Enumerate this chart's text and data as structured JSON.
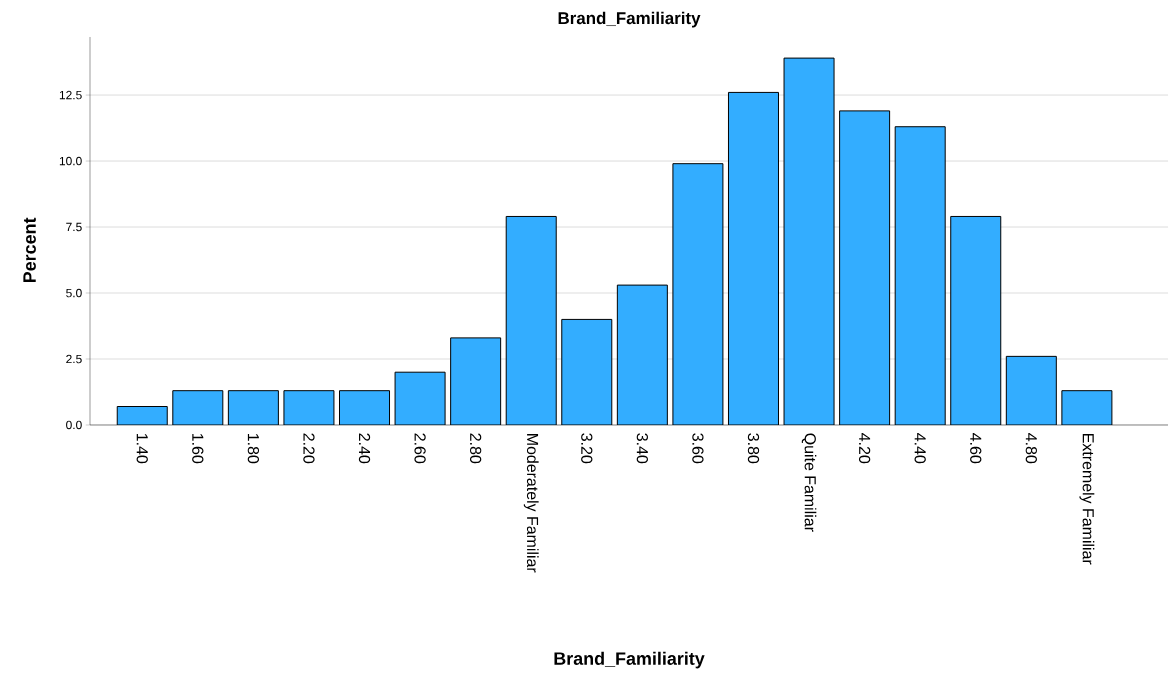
{
  "chart_data": {
    "type": "bar",
    "title": "Brand_Familiarity",
    "xlabel": "Brand_Familiarity",
    "ylabel": "Percent",
    "categories": [
      "1.40",
      "1.60",
      "1.80",
      "2.20",
      "2.40",
      "2.60",
      "2.80",
      "Moderately Familiar",
      "3.20",
      "3.40",
      "3.60",
      "3.80",
      "Quite Familiar",
      "4.20",
      "4.40",
      "4.60",
      "4.80",
      "Extremely Familiar"
    ],
    "values": [
      0.7,
      1.3,
      1.3,
      1.3,
      1.3,
      2.0,
      3.3,
      7.9,
      4.0,
      5.3,
      9.9,
      12.6,
      13.9,
      11.9,
      11.3,
      7.9,
      2.6,
      1.3
    ],
    "color": "#33adff",
    "ylim": [
      0,
      14.7
    ],
    "yticks": [
      {
        "value": 0,
        "label": "0.0"
      },
      {
        "value": 2.5,
        "label": "2.5"
      },
      {
        "value": 5,
        "label": "5.0"
      },
      {
        "value": 7.5,
        "label": "7.5"
      },
      {
        "value": 10,
        "label": "10.0"
      },
      {
        "value": 12.5,
        "label": "12.5"
      }
    ],
    "grid": "y"
  }
}
